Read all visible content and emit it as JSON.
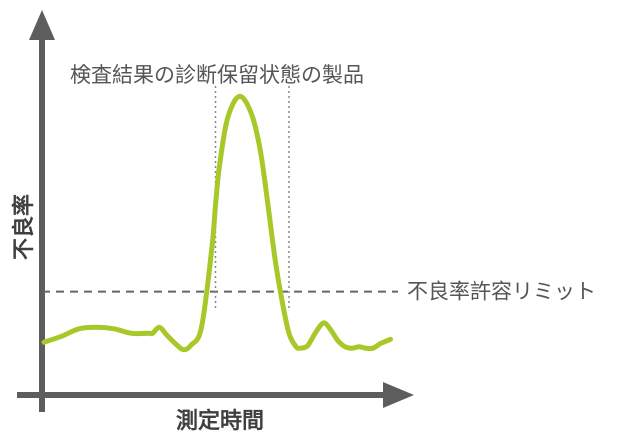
{
  "chart_data": {
    "type": "line",
    "title": "",
    "xlabel": "測定時間",
    "ylabel": "不良率",
    "xlim": [
      0,
      100
    ],
    "ylim": [
      0,
      100
    ],
    "grid": false,
    "legend": "none",
    "x_ticks": [],
    "y_ticks": [],
    "series": [
      {
        "color": "#a8c82a",
        "x": [
          0,
          5,
          10,
          15,
          20,
          25,
          30,
          31,
          33,
          35,
          38,
          40,
          42,
          45,
          48,
          49,
          50,
          52,
          54,
          56,
          58,
          60,
          62,
          64,
          66,
          68,
          70,
          72,
          73,
          75,
          76,
          78,
          80,
          82,
          84,
          86,
          88,
          90,
          92,
          94,
          96,
          97,
          99
        ],
        "values": [
          12,
          14,
          16.5,
          17,
          16.5,
          15,
          15,
          15,
          17,
          14.5,
          11,
          9.5,
          11,
          17,
          44,
          58,
          70,
          85,
          92,
          94.5,
          92,
          86,
          75,
          58,
          40,
          26,
          15,
          10.5,
          10,
          10.5,
          12,
          16,
          18.5,
          16,
          12.5,
          10.5,
          10,
          10.5,
          10,
          10,
          11.5,
          12,
          13
        ]
      }
    ],
    "annotations": {
      "threshold": {
        "label": "不良率許容リミット",
        "y": 29,
        "color": "#666666"
      },
      "hold_region": {
        "label": "検査結果の診断保留状態の製品",
        "x_from": 49,
        "x_to": 70
      }
    },
    "colors": {
      "axis": "#5d5d5d",
      "curve": "#a8c82a",
      "annotation_text": "#555555"
    }
  }
}
